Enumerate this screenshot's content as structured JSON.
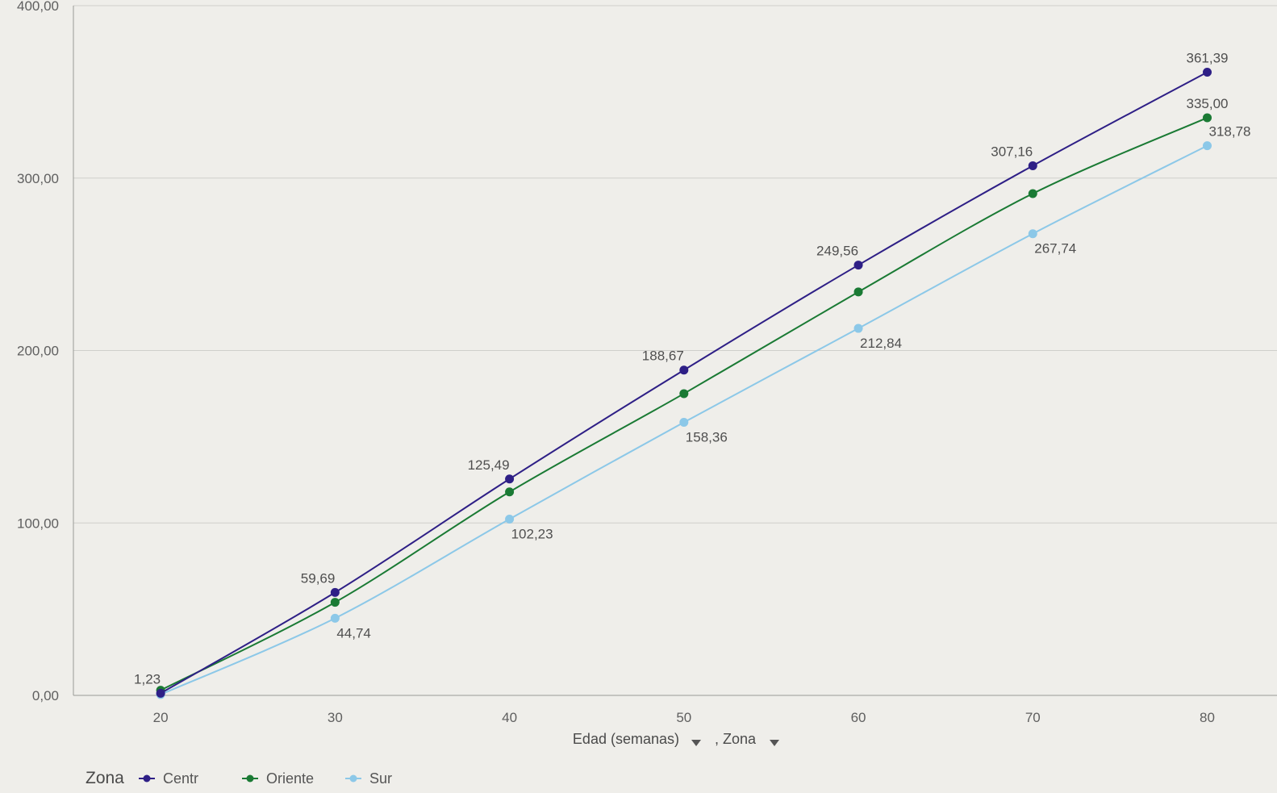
{
  "chart_data": {
    "type": "line",
    "xlabel_parts": [
      "Edad (semanas)",
      ", Zona"
    ],
    "ylabel": "",
    "x": [
      20,
      30,
      40,
      50,
      60,
      70,
      80
    ],
    "x_tick_labels": [
      "20",
      "30",
      "40",
      "50",
      "60",
      "70",
      "80"
    ],
    "xlim": [
      15,
      84
    ],
    "ylim": [
      0,
      400
    ],
    "y_ticks": [
      0,
      100,
      200,
      300,
      400
    ],
    "y_tick_labels": [
      "0,00",
      "100,00",
      "200,00",
      "300,00",
      "400,00"
    ],
    "grid": true,
    "legend_title": "Zona",
    "legend_position": "bottom-left",
    "series": [
      {
        "name": "Centr",
        "color": "#2e1f86",
        "values": [
          1.23,
          59.69,
          125.49,
          188.67,
          249.56,
          307.16,
          361.39
        ],
        "labels": [
          "1,23",
          "59,69",
          "125,49",
          "188,67",
          "249,56",
          "307,16",
          "361,39"
        ],
        "label_position": "above"
      },
      {
        "name": "Oriente",
        "color": "#1a7a34",
        "values": [
          3,
          54,
          118,
          175,
          234,
          291,
          335.0
        ],
        "labels": [
          "",
          "",
          "",
          "",
          "",
          "",
          "335,00"
        ],
        "label_position": "above"
      },
      {
        "name": "Sur",
        "color": "#8cc8e8",
        "values": [
          0.5,
          44.74,
          102.23,
          158.36,
          212.84,
          267.74,
          318.78
        ],
        "labels": [
          "",
          "44,74",
          "102,23",
          "158,36",
          "212,84",
          "267,74",
          "318,78"
        ],
        "label_position": "below"
      }
    ]
  }
}
